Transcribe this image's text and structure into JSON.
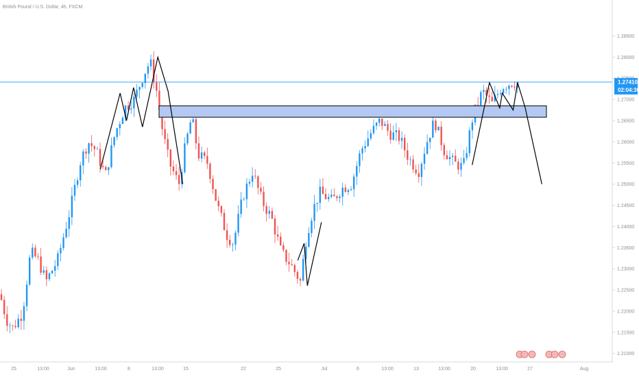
{
  "header": {
    "symbol": "British Pound / U.S. Dollar, 4h, FXCM"
  },
  "current_price": {
    "price": "1.27410",
    "countdown": "02:04:30",
    "color": "#2196f3"
  },
  "colors": {
    "up": "#2196f3",
    "down": "#ef5350",
    "zone_fill": "#b3c9f3",
    "zone_stroke": "#000000",
    "drawing": "#000000"
  },
  "chart_data": {
    "type": "candlestick",
    "y_axis": {
      "min": 1.208,
      "max": 1.2935,
      "ticks": [
        "1.21000",
        "1.21500",
        "1.22000",
        "1.22500",
        "1.23000",
        "1.23500",
        "1.24000",
        "1.24500",
        "1.25000",
        "1.25500",
        "1.26000",
        "1.26500",
        "1.27000",
        "1.27500",
        "1.28000",
        "1.28500"
      ]
    },
    "x_axis": {
      "ticks": [
        "25",
        "13:00",
        "Jun",
        "13:00",
        "8",
        "13:00",
        "15",
        "22",
        "25",
        "Jul",
        "6",
        "13:00",
        "13",
        "13:00",
        "20",
        "13:00",
        "27",
        "Aug",
        "13"
      ]
    },
    "price_path": [
      [
        0.0,
        1.224
      ],
      [
        0.01,
        1.218
      ],
      [
        0.02,
        1.216
      ],
      [
        0.035,
        1.2195
      ],
      [
        0.048,
        1.234
      ],
      [
        0.06,
        1.232
      ],
      [
        0.072,
        1.227
      ],
      [
        0.09,
        1.232
      ],
      [
        0.11,
        1.244
      ],
      [
        0.125,
        1.255
      ],
      [
        0.138,
        1.26
      ],
      [
        0.15,
        1.258
      ],
      [
        0.165,
        1.252
      ],
      [
        0.18,
        1.262
      ],
      [
        0.195,
        1.268
      ],
      [
        0.21,
        1.27
      ],
      [
        0.225,
        1.276
      ],
      [
        0.235,
        1.279
      ],
      [
        0.245,
        1.272
      ],
      [
        0.255,
        1.262
      ],
      [
        0.265,
        1.255
      ],
      [
        0.28,
        1.25
      ],
      [
        0.29,
        1.259
      ],
      [
        0.3,
        1.266
      ],
      [
        0.31,
        1.257
      ],
      [
        0.325,
        1.255
      ],
      [
        0.34,
        1.245
      ],
      [
        0.355,
        1.238
      ],
      [
        0.365,
        1.236
      ],
      [
        0.38,
        1.247
      ],
      [
        0.395,
        1.253
      ],
      [
        0.41,
        1.246
      ],
      [
        0.425,
        1.242
      ],
      [
        0.44,
        1.234
      ],
      [
        0.455,
        1.231
      ],
      [
        0.47,
        1.227
      ],
      [
        0.48,
        1.238
      ],
      [
        0.49,
        1.244
      ],
      [
        0.5,
        1.248
      ],
      [
        0.51,
        1.247
      ],
      [
        0.52,
        1.246
      ],
      [
        0.535,
        1.249
      ],
      [
        0.55,
        1.25
      ],
      [
        0.565,
        1.258
      ],
      [
        0.58,
        1.262
      ],
      [
        0.595,
        1.265
      ],
      [
        0.61,
        1.262
      ],
      [
        0.625,
        1.261
      ],
      [
        0.64,
        1.256
      ],
      [
        0.655,
        1.253
      ],
      [
        0.668,
        1.26
      ],
      [
        0.68,
        1.265
      ],
      [
        0.695,
        1.258
      ],
      [
        0.71,
        1.255
      ],
      [
        0.725,
        1.254
      ],
      [
        0.74,
        1.266
      ],
      [
        0.755,
        1.272
      ],
      [
        0.77,
        1.269
      ],
      [
        0.785,
        1.273
      ],
      [
        0.8,
        1.274
      ],
      [
        0.812,
        1.2741
      ]
    ],
    "candle_count": 184,
    "resistance_zone": {
      "top": 1.2685,
      "bottom": 1.2658
    },
    "current_price_value": 1.2741,
    "drawings": [
      {
        "name": "zigzag-left",
        "points": [
          [
            0.157,
            1.2535
          ],
          [
            0.188,
            1.2715
          ],
          [
            0.198,
            1.265
          ],
          [
            0.209,
            1.2728
          ],
          [
            0.223,
            1.2635
          ],
          [
            0.247,
            1.28
          ],
          [
            0.263,
            1.272
          ],
          [
            0.286,
            1.25
          ]
        ]
      },
      {
        "name": "zigzag-bottom",
        "points": [
          [
            0.466,
            1.232
          ],
          [
            0.476,
            1.236
          ],
          [
            0.481,
            1.226
          ],
          [
            0.503,
            1.241
          ]
        ]
      },
      {
        "name": "zigzag-right",
        "points": [
          [
            0.739,
            1.2545
          ],
          [
            0.766,
            1.274
          ],
          [
            0.782,
            1.268
          ],
          [
            0.786,
            1.2715
          ],
          [
            0.803,
            1.2675
          ],
          [
            0.81,
            1.274
          ],
          [
            0.822,
            1.268
          ],
          [
            0.848,
            1.25
          ]
        ]
      }
    ],
    "grid": false
  }
}
